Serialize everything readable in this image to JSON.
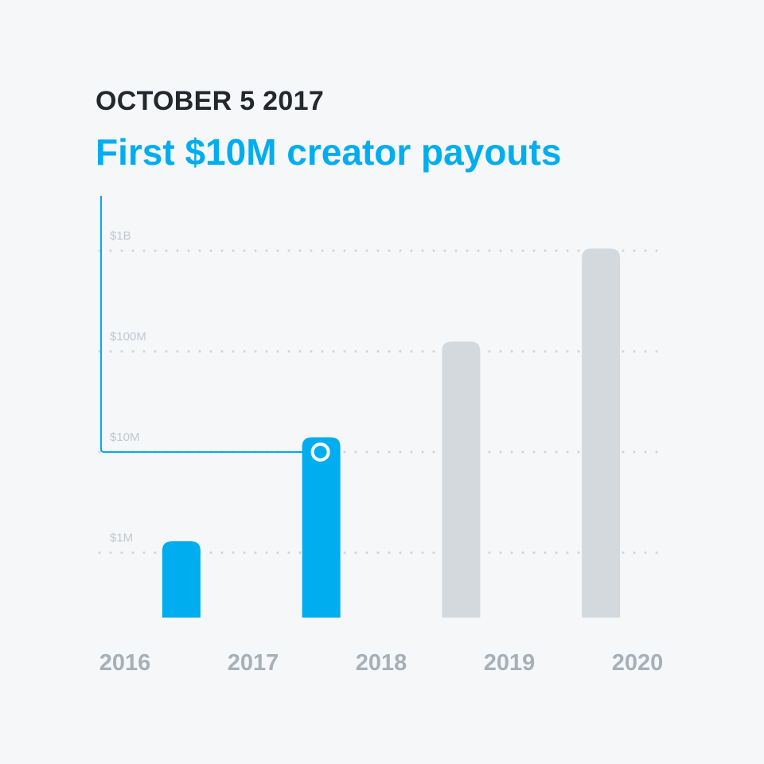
{
  "header": {
    "date": "OCTOBER 5 2017",
    "headline": "First $10M creator payouts"
  },
  "colors": {
    "highlight": "#00adef",
    "future": "#d4d9de",
    "grid": "#cfd4d9",
    "tick_text": "#c3c8ce",
    "axis_text": "#a7afb8"
  },
  "chart_data": {
    "type": "bar",
    "scale": "log",
    "title": "First $10M creator payouts",
    "xlabel": "",
    "ylabel": "",
    "x_tick_labels": [
      "2016",
      "2017",
      "2018",
      "2019",
      "2020"
    ],
    "ylim": [
      300000,
      1400000000
    ],
    "y_ticks": [
      {
        "value": 1000000,
        "label": "$1M"
      },
      {
        "value": 10000000,
        "label": "$10M"
      },
      {
        "value": 100000000,
        "label": "$100M"
      },
      {
        "value": 1000000000,
        "label": "$1B"
      }
    ],
    "bars": [
      {
        "between": [
          "2016",
          "2017"
        ],
        "value": 1300000,
        "status": "reached"
      },
      {
        "between": [
          "2017",
          "2018"
        ],
        "value": 14000000,
        "status": "reached"
      },
      {
        "between": [
          "2018",
          "2019"
        ],
        "value": 125000000,
        "status": "future"
      },
      {
        "between": [
          "2019",
          "2020"
        ],
        "value": 1050000000,
        "status": "future"
      }
    ],
    "grid": "dotted horizontal",
    "annotation": {
      "text": "First $10M creator payouts",
      "value": 10000000,
      "bar_index": 1
    }
  }
}
